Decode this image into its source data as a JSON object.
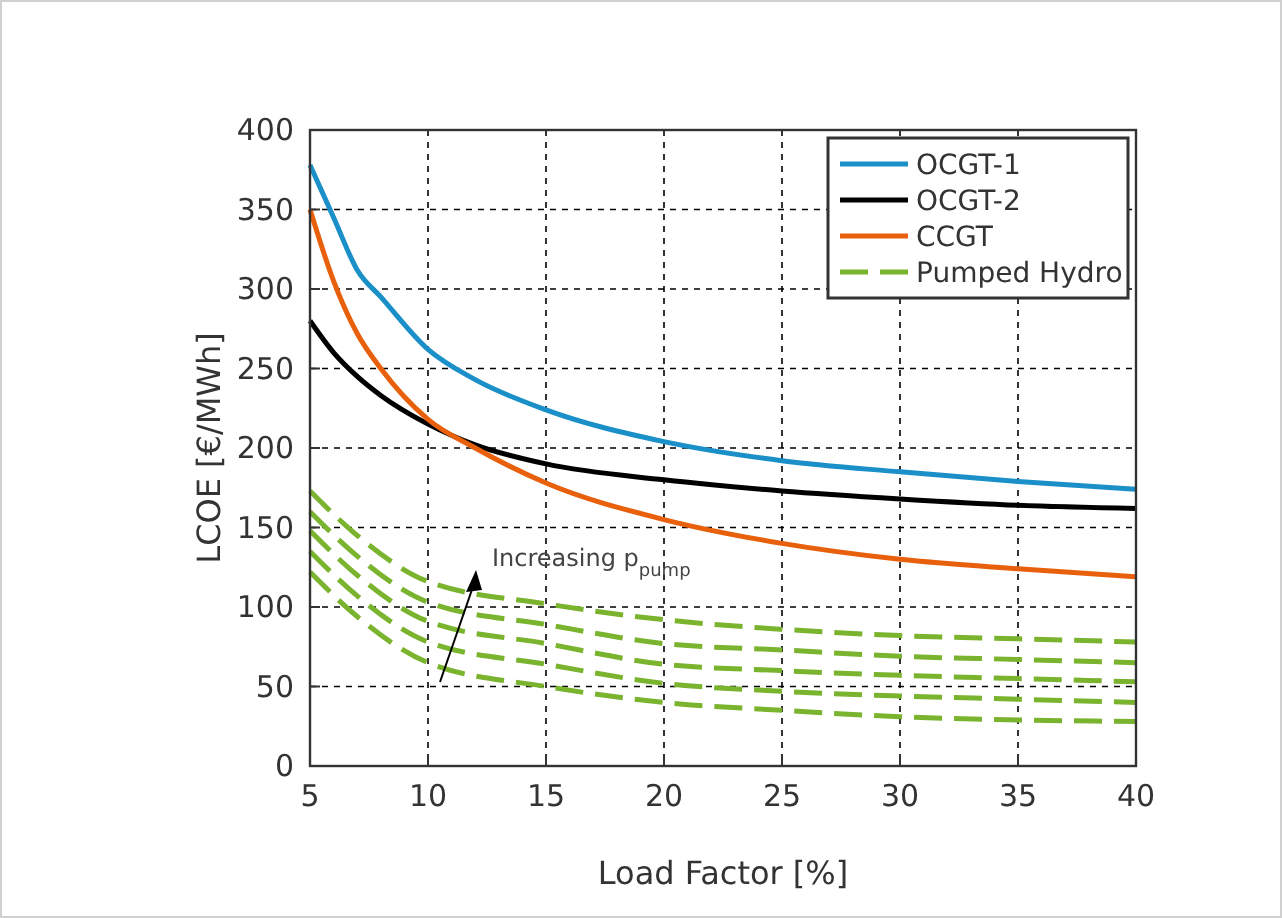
{
  "chart_data": {
    "type": "line",
    "xlabel": "Load Factor [%]",
    "ylabel": "LCOE [€/MWh]",
    "x": [
      5,
      6,
      7,
      8,
      10,
      12,
      15,
      20,
      25,
      30,
      35,
      40
    ],
    "series": [
      {
        "name": "OCGT-1",
        "color": "#1a8fc8",
        "values": [
          378,
          345,
          312,
          295,
          262,
          243,
          224,
          204,
          192,
          185,
          179,
          174
        ]
      },
      {
        "name": "OCGT-2",
        "color": "#000000",
        "values": [
          280,
          260,
          245,
          233,
          215,
          202,
          190,
          180,
          173,
          168,
          164,
          162
        ]
      },
      {
        "name": "CCGT",
        "color": "#e8600c",
        "values": [
          350,
          305,
          272,
          250,
          218,
          200,
          178,
          155,
          140,
          130,
          124,
          119
        ]
      },
      {
        "name": "Pumped Hydro",
        "color": "#7ab32e",
        "line_style": "dashed",
        "x": [
          5,
          7,
          10,
          15,
          20,
          25,
          30,
          35,
          40
        ],
        "values": [
          173,
          145,
          116,
          102,
          92,
          86,
          82,
          80,
          78
        ]
      },
      {
        "color": "#7ab32e",
        "line_style": "dashed",
        "x": [
          5,
          7,
          10,
          15,
          20,
          25,
          30,
          35,
          40
        ],
        "values": [
          160,
          132,
          103,
          89,
          77,
          73,
          69,
          67,
          65
        ]
      },
      {
        "color": "#7ab32e",
        "line_style": "dashed",
        "x": [
          5,
          7,
          10,
          15,
          20,
          25,
          30,
          35,
          40
        ],
        "values": [
          148,
          120,
          91,
          77,
          64,
          60,
          57,
          55,
          53
        ]
      },
      {
        "color": "#7ab32e",
        "line_style": "dashed",
        "x": [
          5,
          7,
          10,
          15,
          20,
          25,
          30,
          35,
          40
        ],
        "values": [
          135,
          107,
          78,
          64,
          52,
          47,
          44,
          42,
          40
        ]
      },
      {
        "color": "#7ab32e",
        "line_style": "dashed",
        "x": [
          5,
          7,
          10,
          15,
          20,
          25,
          30,
          35,
          40
        ],
        "values": [
          122,
          94,
          65,
          50,
          40,
          35,
          31,
          29,
          28
        ]
      }
    ],
    "xlim": [
      5,
      40
    ],
    "xticks": [
      5,
      10,
      15,
      20,
      25,
      30,
      35,
      40
    ],
    "ylim": [
      0,
      400
    ],
    "yticks": [
      0,
      50,
      100,
      150,
      200,
      250,
      300,
      350,
      400
    ],
    "grid": true,
    "legend": "top right",
    "line_style": "solid",
    "marker": "none",
    "annotations": [
      "Increasing p$_{pump}$"
    ]
  }
}
